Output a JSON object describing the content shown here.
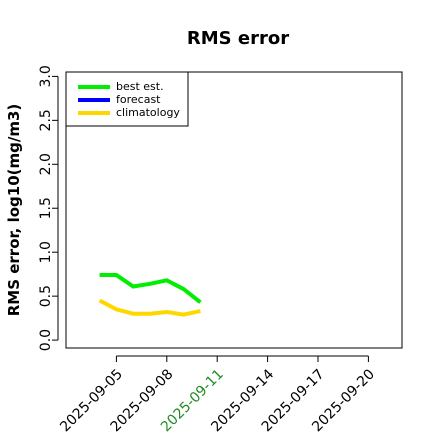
{
  "chart_data": {
    "type": "line",
    "title": "RMS error",
    "ylabel": "RMS error, log10(mg/m3)",
    "x": [
      "2025-09-04",
      "2025-09-05",
      "2025-09-06",
      "2025-09-07",
      "2025-09-08",
      "2025-09-09",
      "2025-09-10"
    ],
    "series": [
      {
        "name": "best est.",
        "color": "#00ee00",
        "values": [
          0.74,
          0.74,
          0.61,
          0.64,
          0.68,
          0.58,
          0.43
        ]
      },
      {
        "name": "forecast",
        "color": "#0000ff",
        "values": [
          null,
          null,
          null,
          null,
          null,
          null,
          null
        ]
      },
      {
        "name": "climatology",
        "color": "#ffd700",
        "values": [
          0.45,
          0.35,
          0.3,
          0.3,
          0.32,
          0.29,
          0.33
        ]
      }
    ],
    "xlim": [
      "2025-09-02",
      "2025-09-22"
    ],
    "xticks": [
      "2025-09-05",
      "2025-09-08",
      "2025-09-11",
      "2025-09-14",
      "2025-09-17",
      "2025-09-20"
    ],
    "xtick_colors": [
      "#000000",
      "#000000",
      "#228b22",
      "#000000",
      "#000000",
      "#000000"
    ],
    "ylim": [
      -0.09,
      3.05
    ],
    "yticks": [
      {
        "value": 0,
        "label": "0.0"
      },
      0.5,
      {
        "value": 1,
        "label": "1.0"
      },
      1.5,
      {
        "value": 2,
        "label": "2.0"
      },
      2.5,
      {
        "value": 3,
        "label": "3.0"
      }
    ],
    "legend": "top-left"
  }
}
